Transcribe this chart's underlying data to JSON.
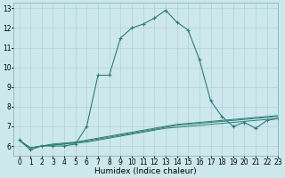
{
  "xlabel": "Humidex (Indice chaleur)",
  "ylabel": "",
  "xlim": [
    -0.5,
    23
  ],
  "ylim": [
    5.5,
    13.3
  ],
  "yticks": [
    6,
    7,
    8,
    9,
    10,
    11,
    12,
    13
  ],
  "xtick_labels": [
    "0",
    "1",
    "2",
    "3",
    "4",
    "5",
    "6",
    "7",
    "8",
    "9",
    "10",
    "11",
    "12",
    "13",
    "14",
    "15",
    "16",
    "17",
    "18",
    "19",
    "20",
    "21",
    "22",
    "23"
  ],
  "xtick_positions": [
    0,
    1,
    2,
    3,
    4,
    5,
    6,
    7,
    8,
    9,
    10,
    11,
    12,
    13,
    14,
    15,
    16,
    17,
    18,
    19,
    20,
    21,
    22,
    23
  ],
  "bg_color": "#cce8ec",
  "line_color": "#2d7d78",
  "grid_color": "#aacdd2",
  "series": [
    [
      6.3,
      5.8,
      6.0,
      6.0,
      6.0,
      6.1,
      7.0,
      9.6,
      9.6,
      11.5,
      12.0,
      12.2,
      12.5,
      12.9,
      12.3,
      11.9,
      10.4,
      8.3,
      7.5,
      7.0,
      7.2,
      6.9,
      7.3,
      7.4
    ],
    [
      6.3,
      5.9,
      6.0,
      6.05,
      6.1,
      6.15,
      6.2,
      6.3,
      6.4,
      6.5,
      6.6,
      6.7,
      6.8,
      6.9,
      6.95,
      7.0,
      7.05,
      7.1,
      7.15,
      7.2,
      7.25,
      7.3,
      7.35,
      7.4
    ],
    [
      6.3,
      5.9,
      6.0,
      6.05,
      6.1,
      6.15,
      6.25,
      6.35,
      6.45,
      6.55,
      6.65,
      6.75,
      6.85,
      6.95,
      7.05,
      7.1,
      7.15,
      7.2,
      7.25,
      7.3,
      7.35,
      7.4,
      7.45,
      7.5
    ],
    [
      6.3,
      5.9,
      6.0,
      6.1,
      6.15,
      6.2,
      6.3,
      6.4,
      6.5,
      6.6,
      6.7,
      6.8,
      6.9,
      7.0,
      7.1,
      7.15,
      7.2,
      7.25,
      7.3,
      7.35,
      7.4,
      7.45,
      7.5,
      7.55
    ]
  ],
  "title_fontsize": 6.5,
  "label_fontsize": 6.5,
  "tick_fontsize": 5.5
}
